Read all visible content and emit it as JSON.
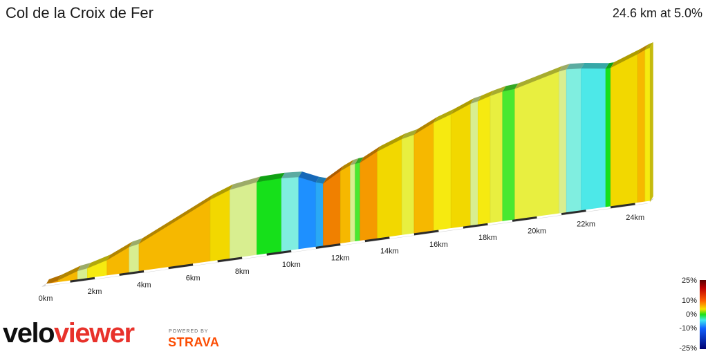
{
  "header": {
    "title": "Col de la Croix de Fer",
    "summary": "24.6 km at 5.0%"
  },
  "branding": {
    "logo_part1": "velo",
    "logo_part2": "viewer",
    "powered_by": "POWERED BY",
    "strava": "STRAVA"
  },
  "legend": {
    "labels": [
      "25%",
      "10%",
      "0%",
      "-10%",
      "-25%"
    ]
  },
  "chart_data": {
    "type": "area",
    "title": "Col de la Croix de Fer",
    "xlabel": "",
    "ylabel": "",
    "x_unit": "km",
    "x_ticks": [
      "0km",
      "2km",
      "4km",
      "6km",
      "8km",
      "10km",
      "12km",
      "14km",
      "16km",
      "18km",
      "20km",
      "22km",
      "24km"
    ],
    "xlim": [
      0,
      24.6
    ],
    "gradient_colors": {
      "-6": "#1e90ff",
      "-4": "#2aa9f5",
      "-2": "#4de8e8",
      "-1": "#80eee0",
      "0": "#16e01a",
      "1": "#4ae830",
      "2": "#d8ee90",
      "3": "#e8ef40",
      "4": "#f6ea10",
      "5": "#f2d800",
      "6": "#f6b800",
      "7": "#f59a00",
      "8": "#f08000"
    },
    "segments": [
      {
        "start": 0.0,
        "end": 0.5,
        "gradient": 7.5,
        "elev_end": 15
      },
      {
        "start": 0.5,
        "end": 1.3,
        "gradient": 6,
        "elev_end": 52
      },
      {
        "start": 1.3,
        "end": 1.7,
        "gradient": 2.5,
        "elev_end": 60
      },
      {
        "start": 1.7,
        "end": 2.5,
        "gradient": 4,
        "elev_end": 90
      },
      {
        "start": 2.5,
        "end": 3.4,
        "gradient": 6,
        "elev_end": 145
      },
      {
        "start": 3.4,
        "end": 3.8,
        "gradient": 2.5,
        "elev_end": 156
      },
      {
        "start": 3.8,
        "end": 6.7,
        "gradient": 6.5,
        "elev_end": 345
      },
      {
        "start": 6.7,
        "end": 7.5,
        "gradient": 5,
        "elev_end": 385
      },
      {
        "start": 7.5,
        "end": 8.6,
        "gradient": 2,
        "elev_end": 407
      },
      {
        "start": 8.6,
        "end": 9.6,
        "gradient": 0.2,
        "elev_end": 410
      },
      {
        "start": 9.6,
        "end": 10.3,
        "gradient": -1,
        "elev_end": 403
      },
      {
        "start": 10.3,
        "end": 11.0,
        "gradient": -6,
        "elev_end": 361
      },
      {
        "start": 11.0,
        "end": 11.3,
        "gradient": -4,
        "elev_end": 349
      },
      {
        "start": 11.3,
        "end": 12.0,
        "gradient": 8,
        "elev_end": 405
      },
      {
        "start": 12.0,
        "end": 12.4,
        "gradient": 6,
        "elev_end": 429
      },
      {
        "start": 12.4,
        "end": 12.6,
        "gradient": 2.5,
        "elev_end": 434
      },
      {
        "start": 12.6,
        "end": 12.8,
        "gradient": 1,
        "elev_end": 436
      },
      {
        "start": 12.8,
        "end": 13.5,
        "gradient": 7,
        "elev_end": 485
      },
      {
        "start": 13.5,
        "end": 14.5,
        "gradient": 5,
        "elev_end": 535
      },
      {
        "start": 14.5,
        "end": 15.0,
        "gradient": 3,
        "elev_end": 550
      },
      {
        "start": 15.0,
        "end": 15.8,
        "gradient": 6.5,
        "elev_end": 602
      },
      {
        "start": 15.8,
        "end": 16.5,
        "gradient": 4.5,
        "elev_end": 634
      },
      {
        "start": 16.5,
        "end": 17.3,
        "gradient": 5.5,
        "elev_end": 678
      },
      {
        "start": 17.3,
        "end": 17.6,
        "gradient": 2.5,
        "elev_end": 686
      },
      {
        "start": 17.6,
        "end": 18.1,
        "gradient": 4,
        "elev_end": 706
      },
      {
        "start": 18.1,
        "end": 18.6,
        "gradient": 3,
        "elev_end": 721
      },
      {
        "start": 18.6,
        "end": 19.1,
        "gradient": 1,
        "elev_end": 726
      },
      {
        "start": 19.1,
        "end": 20.9,
        "gradient": 3.5,
        "elev_end": 789
      },
      {
        "start": 20.9,
        "end": 21.2,
        "gradient": 2,
        "elev_end": 795
      },
      {
        "start": 21.2,
        "end": 21.8,
        "gradient": -1,
        "elev_end": 789
      },
      {
        "start": 21.8,
        "end": 22.8,
        "gradient": -2,
        "elev_end": 769
      },
      {
        "start": 22.8,
        "end": 23.0,
        "gradient": 0.5,
        "elev_end": 770
      },
      {
        "start": 23.0,
        "end": 24.1,
        "gradient": 5,
        "elev_end": 825
      },
      {
        "start": 24.1,
        "end": 24.4,
        "gradient": 6,
        "elev_end": 843
      },
      {
        "start": 24.4,
        "end": 24.6,
        "gradient": 4,
        "elev_end": 851
      }
    ]
  }
}
